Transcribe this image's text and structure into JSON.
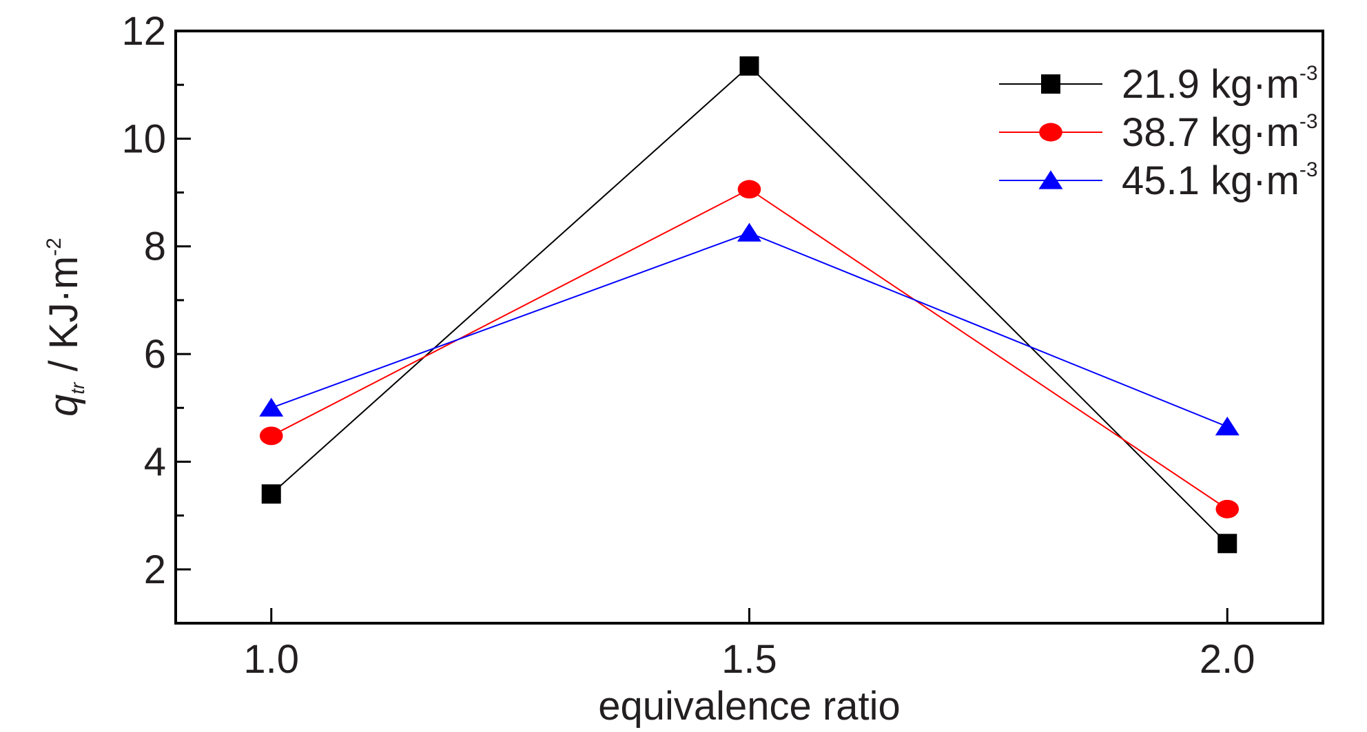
{
  "chart_data": {
    "type": "line",
    "xlabel": "equivalence ratio",
    "ylabel": {
      "symbol": "q",
      "subscript": "tr",
      "unit": " / KJ·m",
      "unit_exponent": "-2"
    },
    "x": [
      1.0,
      1.5,
      2.0
    ],
    "x_tick_labels": [
      "1.0",
      "1.5",
      "2.0"
    ],
    "xlim": [
      0.9,
      2.1
    ],
    "ylim": [
      1,
      12
    ],
    "y_ticks": [
      2,
      4,
      6,
      8,
      10,
      12
    ],
    "y_tick_labels": [
      "2",
      "4",
      "6",
      "8",
      "10",
      "12"
    ],
    "legend_position": "top-right",
    "grid": false,
    "series": [
      {
        "name": "21.9 kg·m",
        "name_exponent": "-3",
        "values": [
          3.4,
          11.35,
          2.48
        ],
        "color": "#000000",
        "marker": "square"
      },
      {
        "name": "38.7 kg·m",
        "name_exponent": "-3",
        "values": [
          4.48,
          9.06,
          3.12
        ],
        "color": "#ff0000",
        "marker": "circle"
      },
      {
        "name": "45.1 kg·m",
        "name_exponent": "-3",
        "values": [
          5.0,
          8.25,
          4.65
        ],
        "color": "#0000ff",
        "marker": "triangle"
      }
    ]
  }
}
